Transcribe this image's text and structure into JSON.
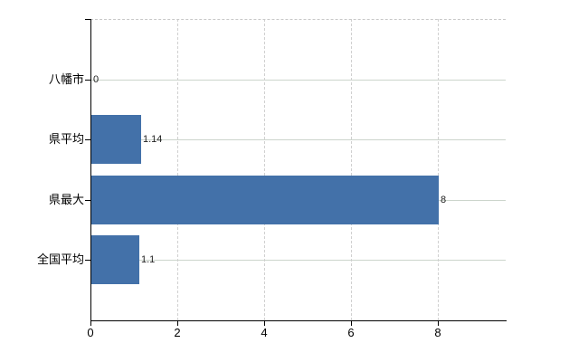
{
  "chart_data": {
    "type": "bar",
    "orientation": "horizontal",
    "title": "",
    "categories": [
      "八幡市",
      "県平均",
      "県最大",
      "全国平均"
    ],
    "values": [
      0,
      1.14,
      8,
      1.1
    ],
    "value_labels": [
      "0",
      "1.14",
      "8",
      "1.1"
    ],
    "x_tick_labels": [
      "0",
      "2",
      "4",
      "6",
      "8"
    ],
    "x_tick_values": [
      0,
      2,
      4,
      6,
      8
    ],
    "xlim": [
      0,
      9.56
    ],
    "ylabel": "",
    "xlabel": "",
    "legend_position": "none",
    "grid": "on",
    "colors": {
      "bar": "#4371a9",
      "horizontal_grid": "#ccd5cc",
      "vertical_grid": "#d0d0d0",
      "top_border": "#c9c9c9",
      "axis": "#000000",
      "category_label": "#000000",
      "tick_label": "#000000",
      "value_label": "#222222",
      "background": "#ffffff"
    }
  }
}
